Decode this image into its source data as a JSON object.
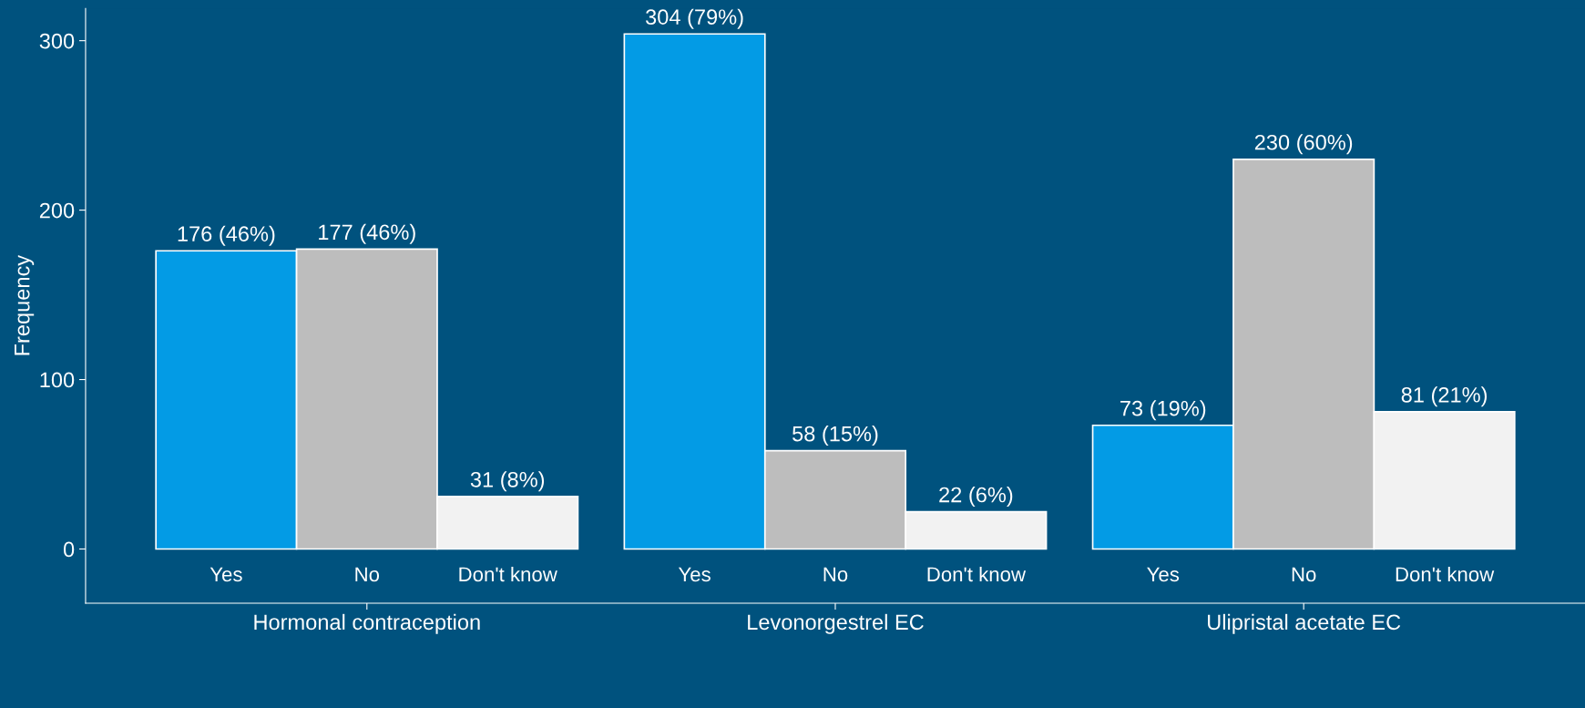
{
  "chart_data": {
    "type": "bar",
    "ylabel": "Frequency",
    "categories": [
      "Hormonal contraception",
      "Levonorgestrel EC",
      "Ulipristal acetate EC"
    ],
    "series": [
      {
        "name": "Yes",
        "color": "#039be5",
        "values": [
          176,
          304,
          73
        ],
        "value_labels": [
          "176 (46%)",
          "304 (79%)",
          "73 (19%)"
        ]
      },
      {
        "name": "No",
        "color": "#bdbdbd",
        "values": [
          177,
          58,
          230
        ],
        "value_labels": [
          "177 (46%)",
          "58 (15%)",
          "230 (60%)"
        ]
      },
      {
        "name": "Don't know",
        "color": "#f2f2f2",
        "values": [
          31,
          22,
          81
        ],
        "value_labels": [
          "31 (8%)",
          "22 (6%)",
          "81 (21%)"
        ]
      }
    ],
    "ylim": [
      -32,
      319
    ],
    "yticks": [
      0,
      100,
      200,
      300
    ],
    "grid": false,
    "legend": false
  }
}
